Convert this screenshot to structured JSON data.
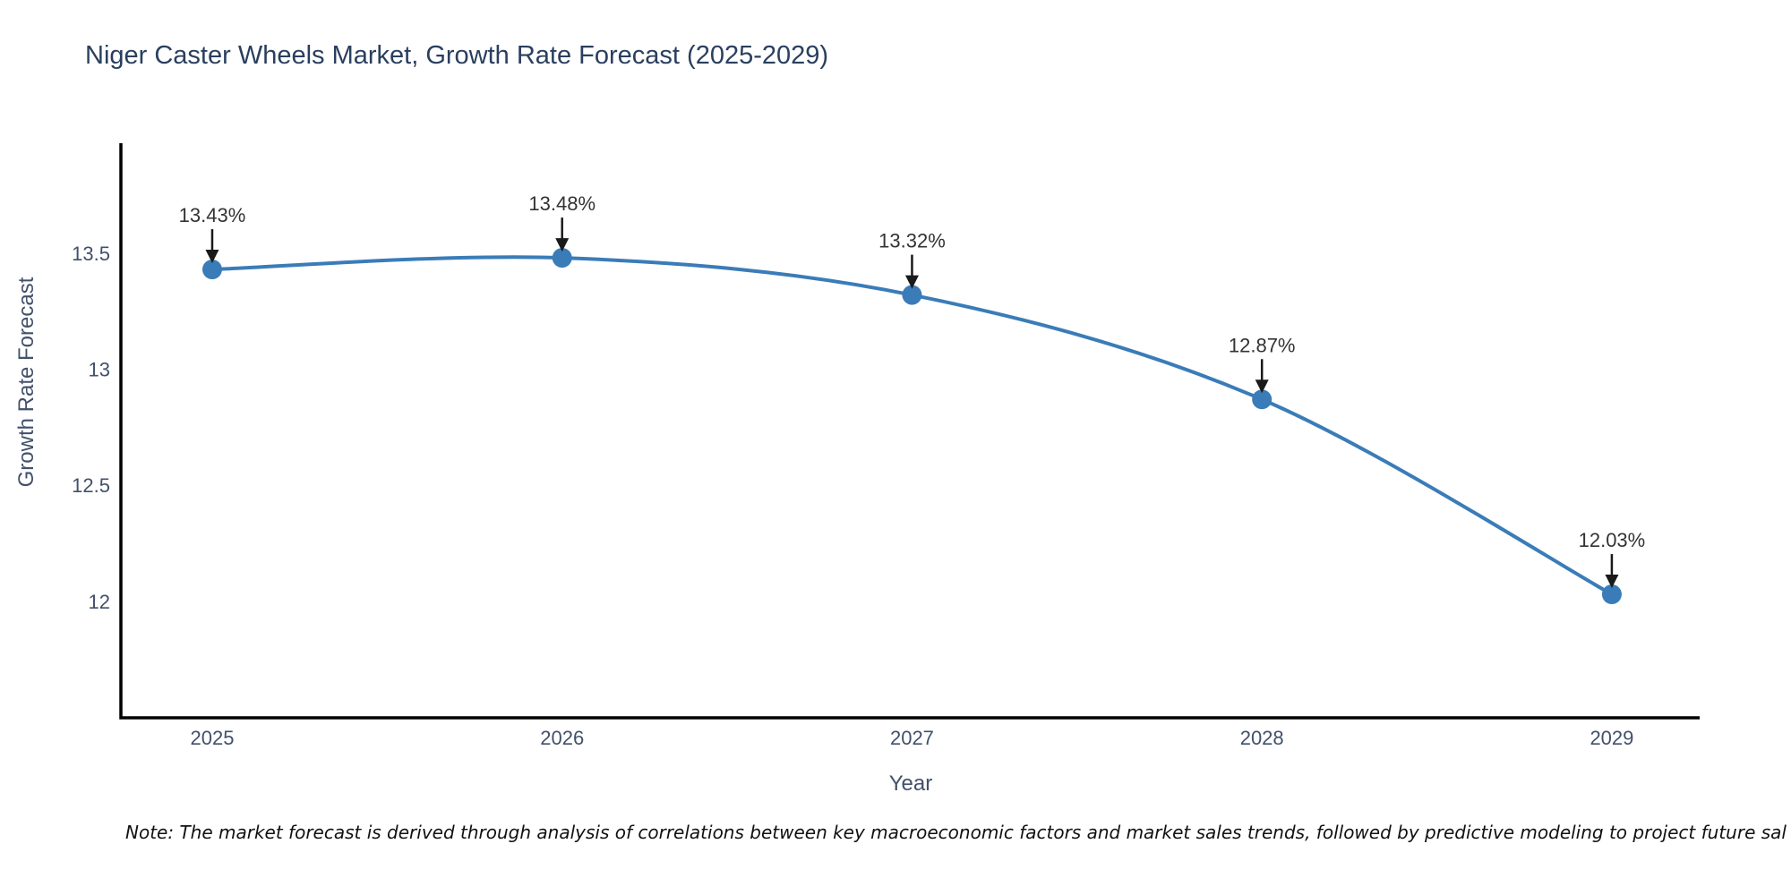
{
  "title": "Niger Caster Wheels Market, Growth Rate Forecast (2025-2029)",
  "note": "Note: The market forecast is derived through analysis of correlations between key macroeconomic factors and market sales trends, followed by predictive modeling to project future sal",
  "chart_data": {
    "type": "line",
    "line_shape": "spline",
    "title": "Niger Caster Wheels Market, Growth Rate Forecast (2025-2029)",
    "xlabel": "Year",
    "ylabel": "Growth Rate Forecast",
    "x": [
      2025,
      2026,
      2027,
      2028,
      2029
    ],
    "values": [
      13.43,
      13.48,
      13.32,
      12.87,
      12.03
    ],
    "point_labels": [
      "13.43%",
      "13.48%",
      "13.32%",
      "12.87%",
      "12.03%"
    ],
    "x_tick_labels": [
      "2025",
      "2026",
      "2027",
      "2028",
      "2029"
    ],
    "y_tick_values": [
      13.5,
      13.0,
      12.5,
      12.0
    ],
    "y_tick_labels": [
      "13.5",
      "13",
      "12.5",
      "12"
    ],
    "xlim": [
      2024.739,
      2029.251
    ],
    "ylim": [
      11.498,
      13.974
    ],
    "grid": false,
    "legend": false,
    "colors": {
      "line": "#3a7cb8",
      "marker": "#3a7cb8",
      "axis_line": "#000000",
      "tick_text": "#42506b",
      "title_text": "#2a3f5f",
      "annotation_text": "#333333",
      "annotation_arrow": "#1a1a1a"
    }
  }
}
